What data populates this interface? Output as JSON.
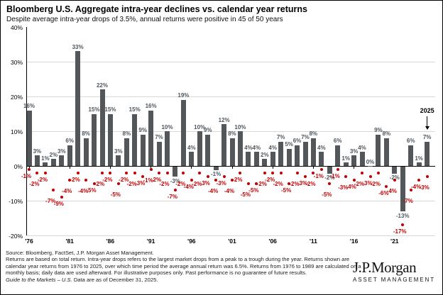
{
  "header": {
    "title": "Bloomberg U.S. Aggregate intra-year declines vs. calendar year returns",
    "subtitle": "Despite average intra-year drops of 3.5%, annual returns were positive in 45 of 50 years"
  },
  "chart_data": {
    "type": "bar",
    "title": "Bloomberg U.S. Aggregate intra-year declines vs. calendar year returns",
    "years": [
      1976,
      1977,
      1978,
      1979,
      1980,
      1981,
      1982,
      1983,
      1984,
      1985,
      1986,
      1987,
      1988,
      1989,
      1990,
      1991,
      1992,
      1993,
      1994,
      1995,
      1996,
      1997,
      1998,
      1999,
      2000,
      2001,
      2002,
      2003,
      2004,
      2005,
      2006,
      2007,
      2008,
      2009,
      2010,
      2011,
      2012,
      2013,
      2014,
      2015,
      2016,
      2017,
      2018,
      2019,
      2020,
      2021,
      2022,
      2023,
      2024,
      2025
    ],
    "series": [
      {
        "name": "Calendar year return",
        "type": "bar",
        "values": [
          16,
          3,
          1,
          2,
          3,
          6,
          33,
          8,
          15,
          22,
          15,
          3,
          8,
          15,
          9,
          16,
          7,
          10,
          -3,
          19,
          4,
          10,
          9,
          -1,
          12,
          8,
          10,
          4,
          4,
          2,
          4,
          7,
          5,
          6,
          7,
          8,
          4,
          -2,
          6,
          1,
          3,
          4,
          0,
          9,
          8,
          -2,
          -13,
          6,
          1,
          7
        ]
      },
      {
        "name": "Intra-year decline",
        "type": "scatter",
        "values": [
          -1,
          -2,
          -2,
          -7,
          -9,
          -4,
          -2,
          -4,
          -5,
          -2,
          -2,
          -5,
          -2,
          -2,
          -3,
          -1,
          -2,
          -2,
          -7,
          -2,
          -4,
          -2,
          -3,
          -4,
          -3,
          -4,
          -2,
          -5,
          -5,
          -2,
          -2,
          -2,
          -5,
          -2,
          -3,
          -2,
          -1,
          -5,
          -1,
          -3,
          -4,
          -2,
          -3,
          -2,
          -6,
          -4,
          -17,
          -7,
          -4,
          -3
        ]
      }
    ],
    "y_axis": {
      "tick_labels": [
        "40%",
        "30%",
        "20%",
        "10%",
        "0%",
        "-10%",
        "-20%"
      ],
      "tick_values": [
        40,
        30,
        20,
        10,
        0,
        -10,
        -20
      ],
      "min": -20,
      "max": 40,
      "grid_values": [
        30,
        20,
        10,
        -10,
        -20
      ]
    },
    "x_axis": {
      "tick_labels": [
        "'76",
        "'81",
        "'86",
        "'91",
        "'96",
        "'01",
        "'06",
        "'11",
        "'16",
        "'21"
      ],
      "tick_indices": [
        0,
        5,
        10,
        15,
        20,
        25,
        30,
        35,
        40,
        45
      ]
    },
    "annotation": {
      "label": "2025",
      "year_index": 49
    },
    "legend_position": "none",
    "grid": true
  },
  "footer": {
    "source": "Source: Bloomberg, FactSet, J.P. Morgan Asset Management.",
    "body": "Returns are based on total return. Intra-year drops refers to the largest market drops from a peak to a trough during the year. Returns shown are calendar year returns from 1976 to 2025, over which time period the average annual return was 6.5%. Returns from 1976 to 1989 are calculated on a monthly basis; daily data are used afterward. For illustrative purposes only. Past performance is no guarantee of future results.",
    "gtm_italic": "Guide to the Markets – U.S.",
    "gtm_rest": " Data are as of December 31, 2025."
  },
  "logo": {
    "name": "J.P.Morgan",
    "subtitle": "ASSET MANAGEMENT"
  },
  "colors": {
    "bar": "#53575a",
    "bar_label": "#4d565e",
    "decline": "#c00000",
    "gridline": "#d8d8d8",
    "axis": "#000000"
  }
}
